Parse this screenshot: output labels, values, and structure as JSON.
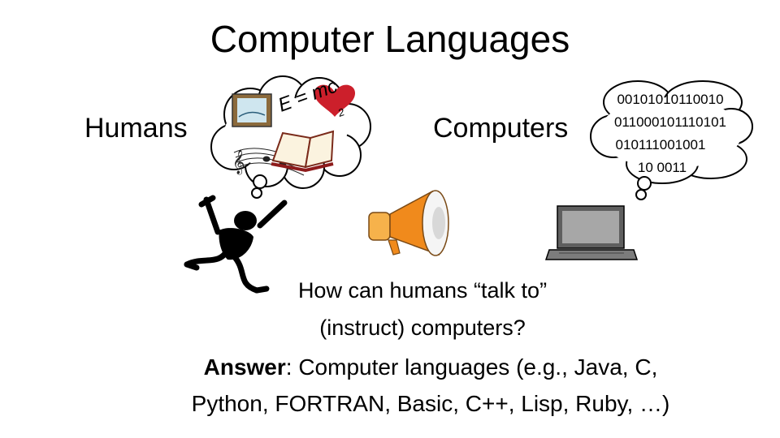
{
  "slide": {
    "title": "Computer Languages",
    "humans_label": "Humans",
    "computers_label": "Computers",
    "human_thought": {
      "formula": "E = mc",
      "exponent": "2",
      "items": [
        "framed-picture-icon",
        "heart-icon",
        "music-notes-icon",
        "open-book-icon"
      ]
    },
    "computer_thought": {
      "binary_lines": [
        "00101010110010",
        "011000101110101",
        "010111001001",
        "10 0011"
      ]
    },
    "question_line1": "How can humans “talk to”",
    "question_line2": "(instruct) computers?",
    "answer_label": "Answer",
    "answer_line1_rest": ": Computer languages (e.g., Java, C,",
    "answer_line2": "Python, FORTRAN, Basic, C++, Lisp, Ruby, …)"
  },
  "colors": {
    "heart": "#cc1f2b",
    "megaphone": "#f08a1c",
    "screen": "#a7a7a7"
  }
}
